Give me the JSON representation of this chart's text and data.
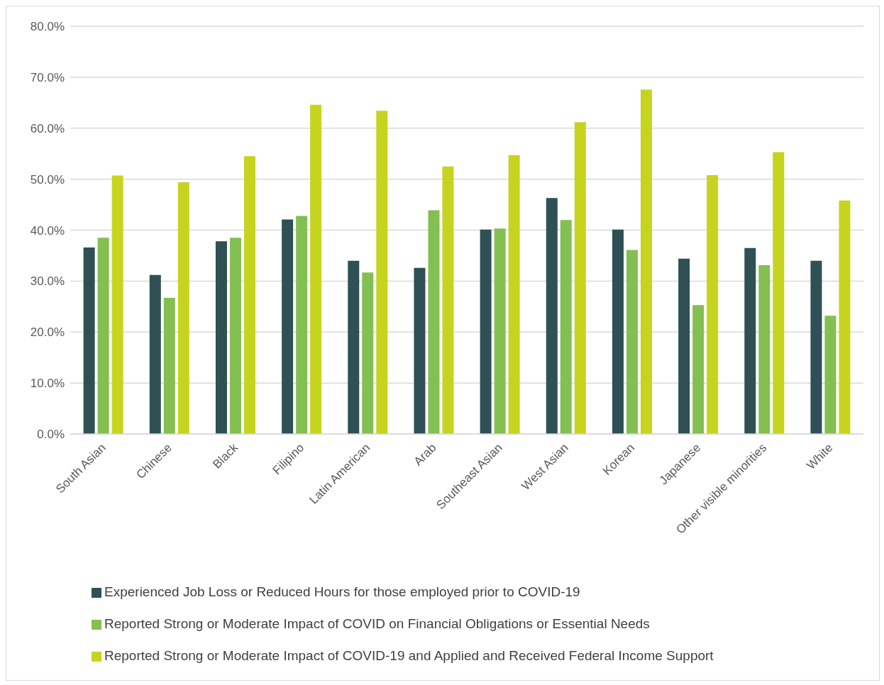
{
  "chart_data": {
    "type": "bar",
    "categories": [
      "South Asian",
      "Chinese",
      "Black",
      "Filipino",
      "Latin American",
      "Arab",
      "Southeast Asian",
      "West Asian",
      "Korean",
      "Japanese",
      "Other visible minorities",
      "White"
    ],
    "series": [
      {
        "name": "Experienced Job Loss or Reduced Hours for those employed prior to COVID-19",
        "color": "#2f5055",
        "values": [
          36.6,
          31.2,
          37.8,
          42.1,
          34.0,
          32.6,
          40.1,
          46.3,
          40.1,
          34.4,
          36.5,
          34.0
        ]
      },
      {
        "name": "Reported Strong or Moderate Impact of COVID on Financial Obligations or Essential Needs",
        "color": "#84bf52",
        "values": [
          38.5,
          26.7,
          38.5,
          42.8,
          31.7,
          43.9,
          40.3,
          42.0,
          36.1,
          25.3,
          33.1,
          23.2
        ]
      },
      {
        "name": "Reported Strong or Moderate Impact of COVID-19 and Applied and Received Federal Income Support",
        "color": "#c6d41f",
        "values": [
          50.7,
          49.4,
          54.5,
          64.6,
          63.4,
          52.5,
          54.7,
          61.2,
          67.6,
          50.8,
          55.3,
          45.8
        ]
      }
    ],
    "ylim": [
      0,
      80
    ],
    "yticks": [
      {
        "value": 0,
        "label": "0.0%"
      },
      {
        "value": 10,
        "label": "10.0%"
      },
      {
        "value": 20,
        "label": "20.0%"
      },
      {
        "value": 30,
        "label": "30.0%"
      },
      {
        "value": 40,
        "label": "40.0%"
      },
      {
        "value": 50,
        "label": "50.0%"
      },
      {
        "value": 60,
        "label": "60.0%"
      },
      {
        "value": 70,
        "label": "70.0%"
      },
      {
        "value": 80,
        "label": "80.0%"
      }
    ],
    "grid": "y",
    "legend": "bottom"
  }
}
